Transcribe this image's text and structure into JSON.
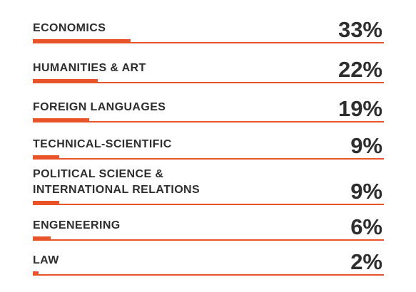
{
  "chart_data": {
    "type": "bar",
    "orientation": "horizontal",
    "categories": [
      "ECONOMICS",
      "HUMANITIES & ART",
      "FOREIGN LANGUAGES",
      "TECHNICAL-SCIENTIFIC",
      "POLITICAL SCIENCE &\nINTERNATIONAL RELATIONS",
      "ENGENEERING",
      "LAW"
    ],
    "values": [
      33,
      22,
      19,
      9,
      9,
      6,
      2
    ],
    "value_labels": [
      "33%",
      "22%",
      "19%",
      "9%",
      "9%",
      "6%",
      "2%"
    ],
    "unit": "%",
    "xlim": [
      0,
      100
    ],
    "grid": false,
    "legend": "none",
    "bar_color": "#e8532a",
    "text_color": "#2e2e2e"
  }
}
